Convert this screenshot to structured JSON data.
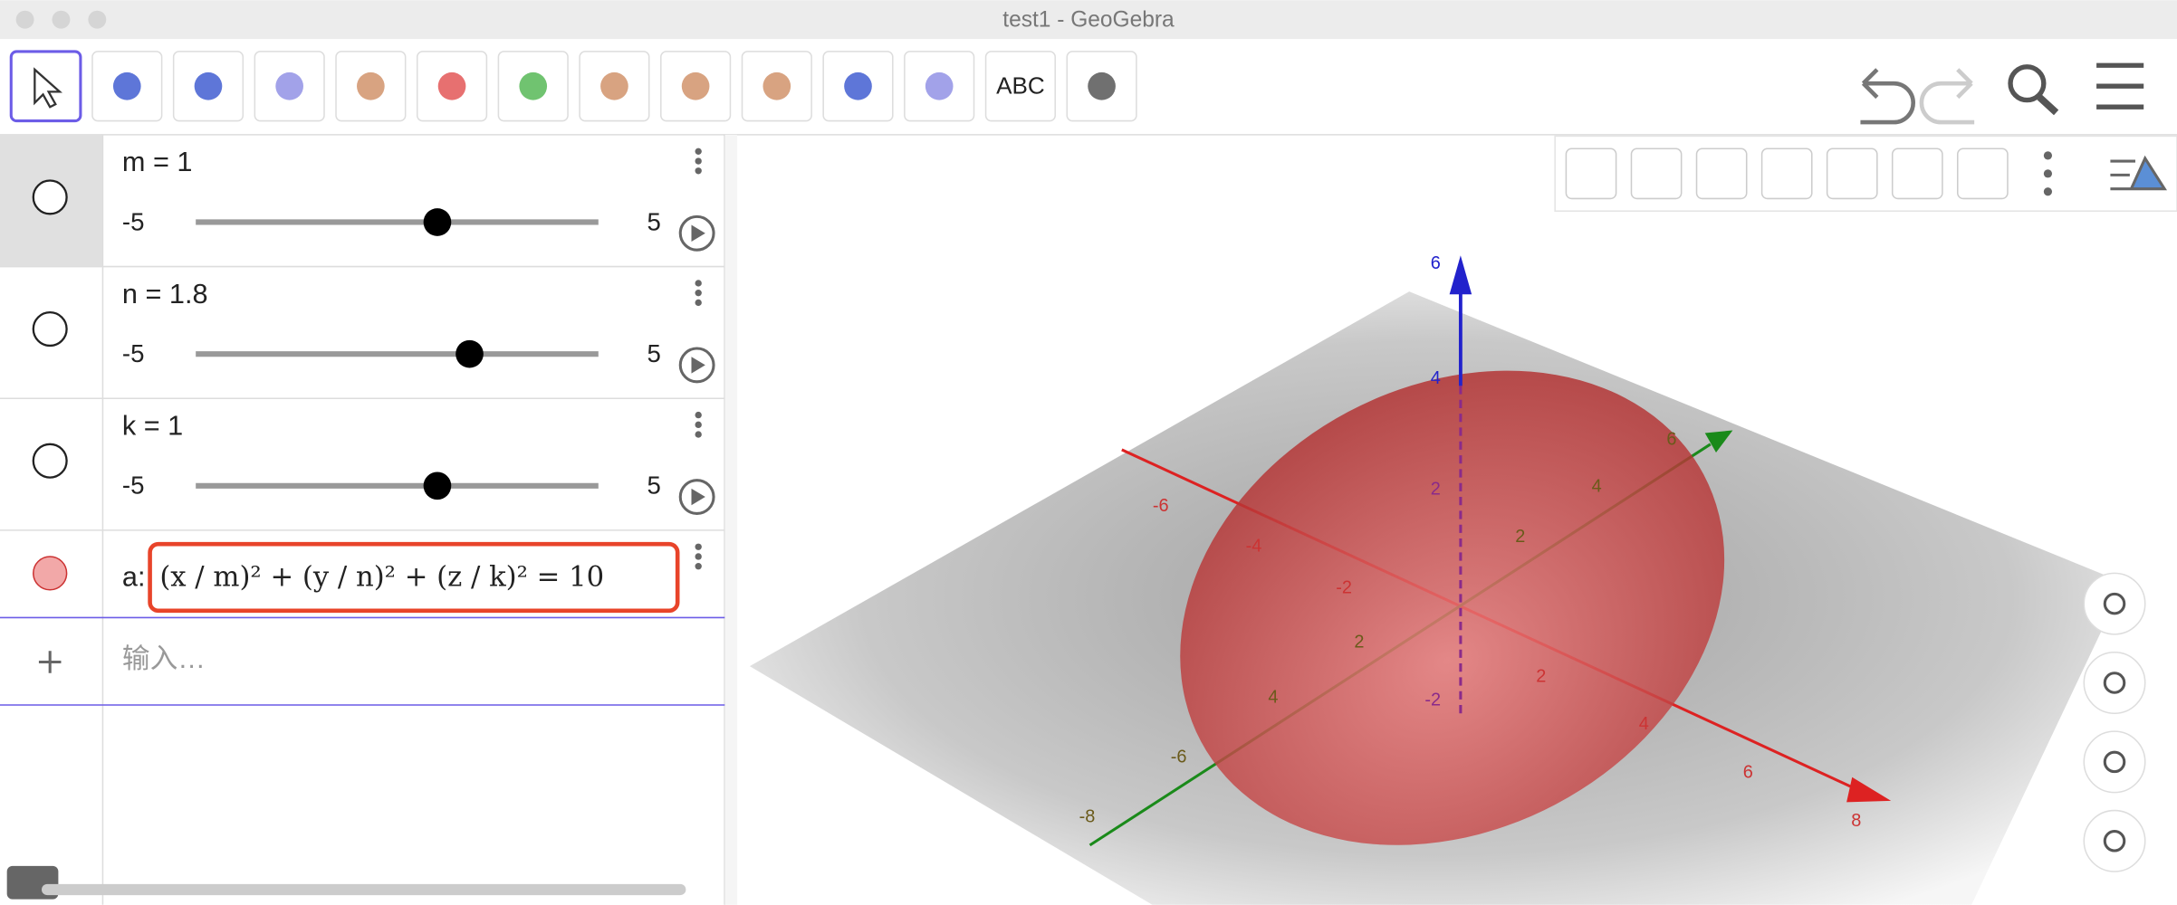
{
  "window": {
    "title": "test1 - GeoGebra"
  },
  "toolbar": {
    "text_tool": "ABC"
  },
  "algebra": {
    "sliders": [
      {
        "label": "m = 1",
        "value": 1,
        "min": -5,
        "max": 5
      },
      {
        "label": "n = 1.8",
        "value": 1.8,
        "min": -5,
        "max": 5
      },
      {
        "label": "k = 1",
        "value": 1,
        "min": -5,
        "max": 5
      }
    ],
    "equation": {
      "name": "a:",
      "expression": "(x / m)² + (y / n)² + (z / k)² = 10"
    },
    "input_placeholder": "输入…"
  },
  "graphics": {
    "z_labels": [
      "6",
      "4",
      "2",
      "-2"
    ],
    "x_labels": [
      "-6",
      "-4",
      "-2",
      "2",
      "4",
      "6",
      "8"
    ],
    "y_labels": [
      "-8",
      "-6",
      "4",
      "2",
      "2",
      "4",
      "6"
    ]
  }
}
